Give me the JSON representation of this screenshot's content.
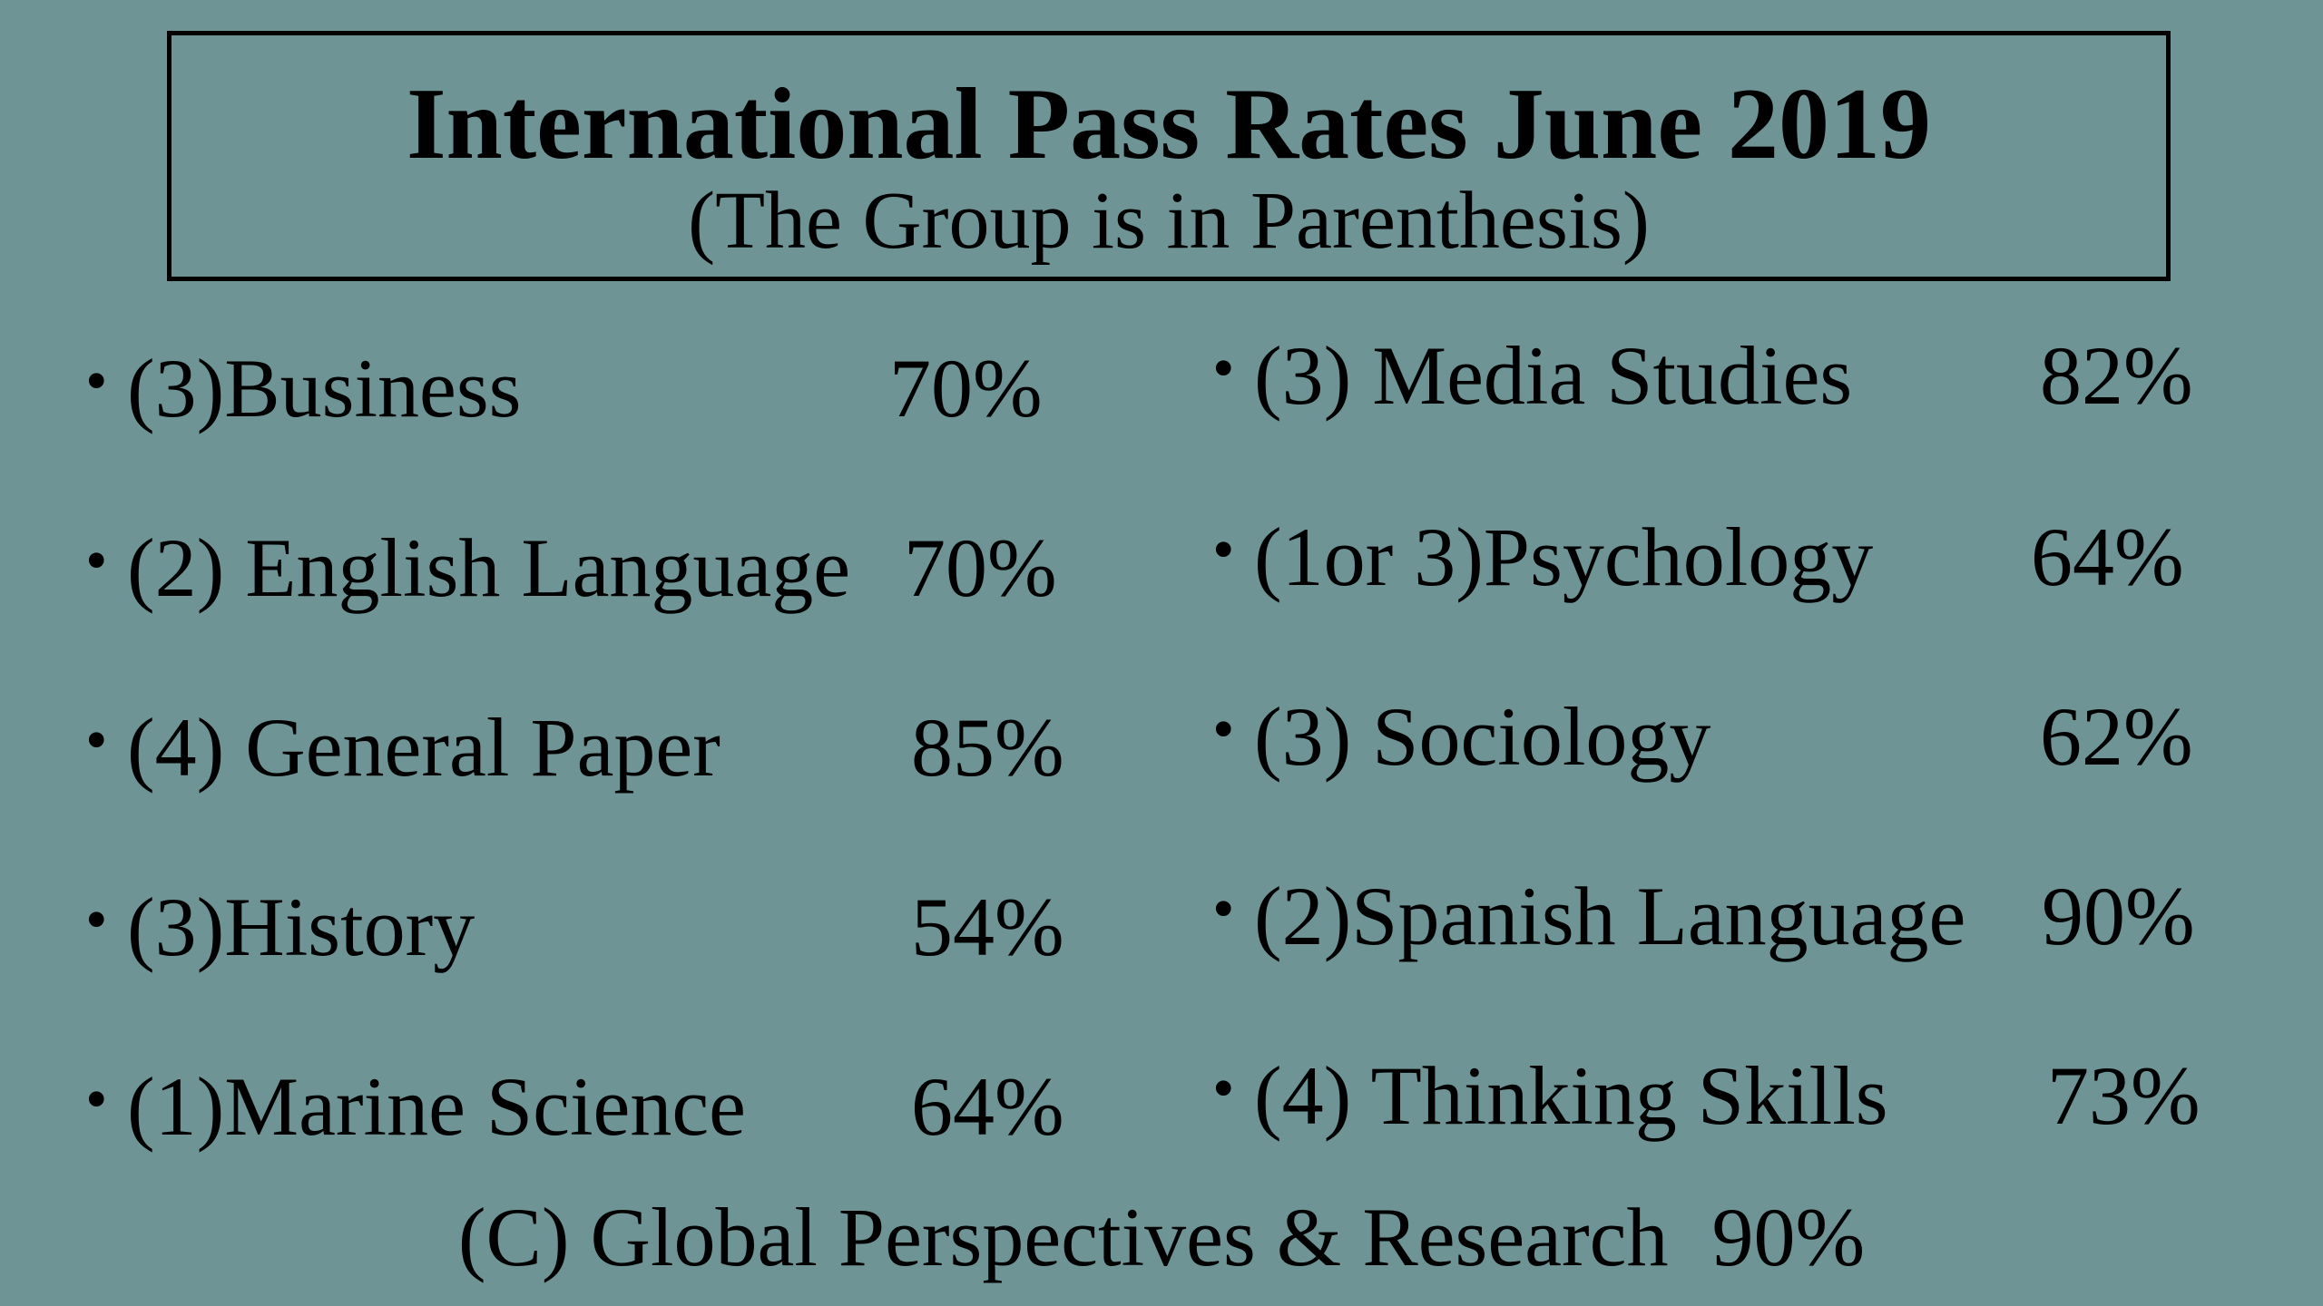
{
  "title": "International Pass Rates June 2019",
  "subtitle": "(The Group is in Parenthesis)",
  "bullet": "•",
  "left_items": [
    {
      "label": "(3)Business",
      "pct": "70%"
    },
    {
      "label": "(2) English Language",
      "pct": "70%"
    },
    {
      "label": "(4) General Paper",
      "pct": "85%"
    },
    {
      "label": "(3)History",
      "pct": "54%"
    },
    {
      "label": "(1)Marine Science",
      "pct": "64%"
    }
  ],
  "right_items": [
    {
      "label": "(3) Media Studies",
      "pct": "82%"
    },
    {
      "label": "(1or 3)Psychology",
      "pct": "64%"
    },
    {
      "label": "(3) Sociology",
      "pct": "62%"
    },
    {
      "label": "(2)Spanish Language",
      "pct": "90%"
    },
    {
      "label": "(4) Thinking Skills",
      "pct": "73%"
    }
  ],
  "footer": {
    "label": "(C) Global Perspectives & Research",
    "pct": "90%"
  }
}
